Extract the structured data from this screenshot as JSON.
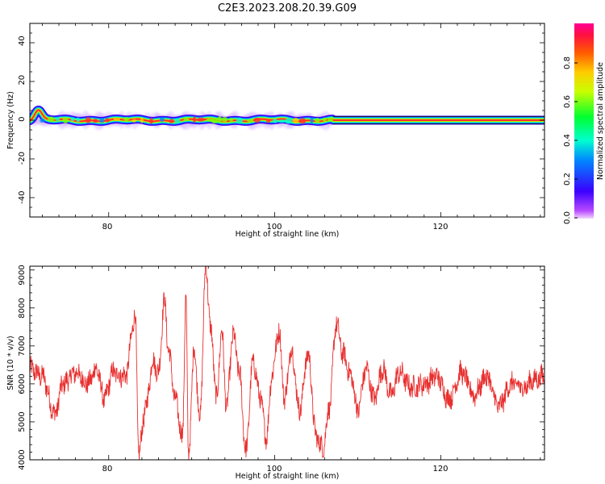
{
  "title": "C2E3.2023.208.20.39.G09",
  "chart_data": [
    {
      "type": "heatmap",
      "title": "C2E3.2023.208.20.39.G09",
      "xlabel": "Height of straight line (km)",
      "ylabel": "Frequency (Hz)",
      "xlim": [
        70.5,
        132.5
      ],
      "ylim": [
        -50,
        50
      ],
      "x_ticks": [
        80,
        100,
        120
      ],
      "y_ticks": [
        -40,
        -20,
        0,
        20,
        40
      ],
      "grid": false,
      "colorbar": {
        "label": "Normalized spectral amplitude",
        "range": [
          0,
          1
        ],
        "ticks": [
          0.0,
          0.2,
          0.4,
          0.6,
          0.8
        ],
        "tick_labels": [
          "0.0",
          "0.2",
          "0.4",
          "0.6",
          "0.8"
        ],
        "colormap": "gist_rainbow_r"
      },
      "ridge_frequency_hz": 0,
      "ridge_start_deviation": {
        "height_km": 71.5,
        "frequency_hz": 5
      },
      "ridge_end_height_km": 107
    },
    {
      "type": "line",
      "xlabel": "Height of straight line (km)",
      "ylabel": "SNR (10 * v/v)",
      "xlim": [
        70.5,
        132.5
      ],
      "ylim": [
        4000,
        9100
      ],
      "x_ticks": [
        80,
        100,
        120
      ],
      "y_ticks": [
        4000,
        5000,
        6000,
        7000,
        8000,
        9000
      ],
      "grid": false,
      "color": "#e8302f",
      "key_points": [
        [
          70.5,
          6400
        ],
        [
          72.0,
          6200
        ],
        [
          73.5,
          5200
        ],
        [
          74.5,
          6000
        ],
        [
          76.0,
          6300
        ],
        [
          77.5,
          6000
        ],
        [
          78.5,
          6400
        ],
        [
          79.5,
          5600
        ],
        [
          80.5,
          6300
        ],
        [
          82.0,
          6200
        ],
        [
          83.2,
          7800
        ],
        [
          83.6,
          4200
        ],
        [
          84.5,
          5400
        ],
        [
          85.3,
          6600
        ],
        [
          86.0,
          6300
        ],
        [
          86.7,
          8200
        ],
        [
          87.2,
          6900
        ],
        [
          88.0,
          5600
        ],
        [
          88.9,
          4600
        ],
        [
          89.3,
          8400
        ],
        [
          89.6,
          4100
        ],
        [
          90.3,
          6900
        ],
        [
          91.0,
          5100
        ],
        [
          91.7,
          9100
        ],
        [
          92.3,
          7400
        ],
        [
          93.0,
          5600
        ],
        [
          93.6,
          7400
        ],
        [
          94.2,
          5400
        ],
        [
          95.0,
          7300
        ],
        [
          95.8,
          6200
        ],
        [
          96.5,
          4200
        ],
        [
          97.4,
          6600
        ],
        [
          98.2,
          5700
        ],
        [
          99.0,
          4600
        ],
        [
          99.7,
          6300
        ],
        [
          100.5,
          7400
        ],
        [
          101.2,
          5600
        ],
        [
          102.0,
          6900
        ],
        [
          103.0,
          5300
        ],
        [
          104.0,
          6800
        ],
        [
          105.0,
          4600
        ],
        [
          105.8,
          4300
        ],
        [
          106.6,
          5400
        ],
        [
          107.4,
          7600
        ],
        [
          108.2,
          6800
        ],
        [
          109.2,
          6200
        ],
        [
          110.0,
          5300
        ],
        [
          111.0,
          6400
        ],
        [
          112.0,
          5600
        ],
        [
          113.0,
          6400
        ],
        [
          114.0,
          5700
        ],
        [
          115.0,
          6300
        ],
        [
          116.5,
          5900
        ],
        [
          118.0,
          6000
        ],
        [
          119.5,
          6200
        ],
        [
          121.0,
          5600
        ],
        [
          122.5,
          6300
        ],
        [
          124.0,
          5700
        ],
        [
          125.5,
          6200
        ],
        [
          127.0,
          5400
        ],
        [
          128.5,
          6000
        ],
        [
          130.0,
          5900
        ],
        [
          131.2,
          6100
        ],
        [
          132.5,
          6200
        ]
      ]
    }
  ]
}
